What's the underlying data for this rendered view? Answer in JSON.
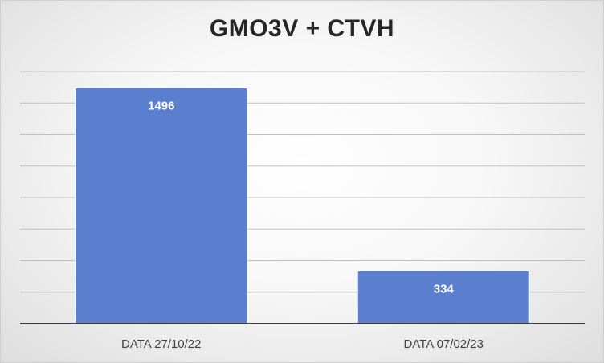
{
  "chart_data": {
    "type": "bar",
    "title": "GMO3V + CTVH",
    "categories": [
      "DATA 27/10/22",
      "DATA 07/02/23"
    ],
    "values": [
      1496,
      334
    ],
    "xlabel": "",
    "ylabel": "",
    "ylim": [
      0,
      1600
    ],
    "grid": true,
    "legend": "none",
    "bar_color": "#5b7fcf",
    "bar_edge_color": "#ffffff",
    "gridline_color": "#bfbfbf",
    "axis_color": "#404040"
  }
}
